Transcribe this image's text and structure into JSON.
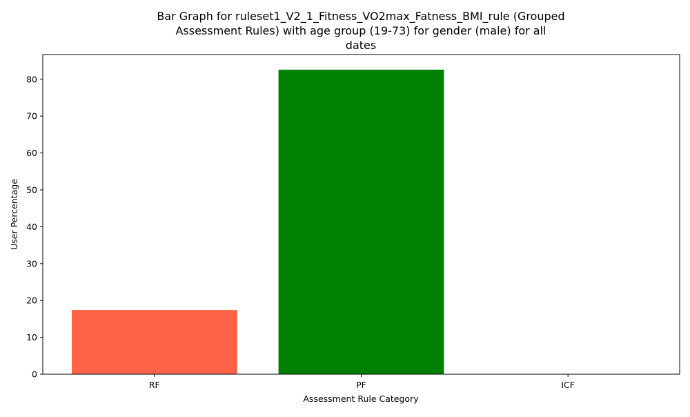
{
  "chart_data": {
    "type": "bar",
    "title_lines": [
      "Bar Graph for ruleset1_V2_1_Fitness_VO2max_Fatness_BMI_rule (Grouped",
      "Assessment Rules) with age group (19-73) for gender (male) for all",
      "dates"
    ],
    "xlabel": "Assessment Rule Category",
    "ylabel": "User Percentage",
    "categories": [
      "RF",
      "PF",
      "ICF"
    ],
    "values": [
      17.4,
      82.6,
      0
    ],
    "bar_colors": [
      "#ff6347",
      "#008000",
      "#ffa500"
    ],
    "ylim": [
      0,
      86.7
    ],
    "yticks": [
      0,
      10,
      20,
      30,
      40,
      50,
      60,
      70,
      80
    ],
    "grid": false,
    "legend": "none"
  }
}
